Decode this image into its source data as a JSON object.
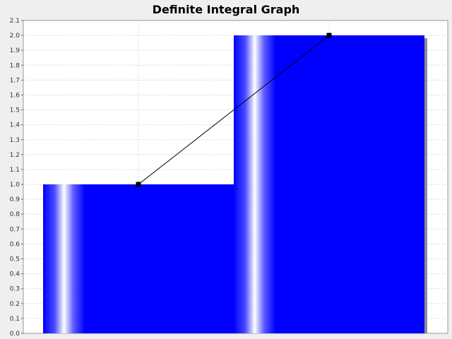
{
  "chart_data": {
    "type": "bar",
    "title": "Definite Integral Graph",
    "xlabel": "",
    "ylabel": "",
    "ylim": [
      0.0,
      2.1
    ],
    "ytick_step": 0.1,
    "grid": true,
    "legend": "none",
    "bars": [
      {
        "value": 1.0
      },
      {
        "value": 2.0
      }
    ],
    "line": {
      "points": [
        {
          "bar": 0,
          "value": 1.0
        },
        {
          "bar": 1,
          "value": 2.0
        }
      ]
    },
    "colors": {
      "bar": "#0000ff",
      "bar_highlight": "#ffffff",
      "shadow": "#8c8c9a",
      "line": "#000000",
      "grid": "#d9d9d9",
      "plot_background": "#ffffff",
      "page_background": "#efefef"
    }
  }
}
